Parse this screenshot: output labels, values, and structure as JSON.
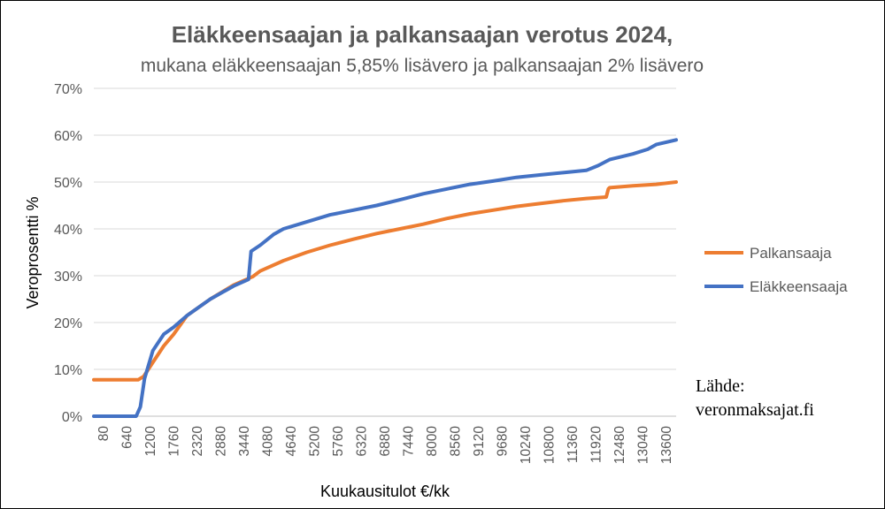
{
  "chart_data": {
    "type": "line",
    "title": "Eläkkeensaajan ja palkansaajan verotus 2024,",
    "subtitle": "mukana eläkkeensaajan 5,85% lisävero ja palkansaajan 2% lisävero",
    "xlabel": "Kuukausitulot €/kk",
    "ylabel": "Veroprosentti %",
    "ylim": [
      0,
      70
    ],
    "y_ticks": [
      "0%",
      "10%",
      "20%",
      "30%",
      "40%",
      "50%",
      "60%",
      "70%"
    ],
    "x_ticks": [
      "80",
      "640",
      "1200",
      "1760",
      "2320",
      "2880",
      "3440",
      "4080",
      "4640",
      "5200",
      "5760",
      "6320",
      "6880",
      "7440",
      "8000",
      "8560",
      "9120",
      "9680",
      "10240",
      "10800",
      "11360",
      "11920",
      "12480",
      "13040",
      "13600"
    ],
    "xlim": [
      80,
      14080
    ],
    "grid": "horizontal",
    "legend_position": "right",
    "series": [
      {
        "name": "Palkansaaja",
        "color": "#ED7D31",
        "x": [
          80,
          1150,
          1280,
          1500,
          1760,
          2000,
          2320,
          2880,
          3440,
          3900,
          4080,
          4640,
          5200,
          5760,
          6320,
          6880,
          7440,
          8000,
          8560,
          9120,
          9680,
          10240,
          10800,
          11360,
          11920,
          12400,
          12450,
          12480,
          13040,
          13600,
          14080
        ],
        "values": [
          7.8,
          7.8,
          8.5,
          11.5,
          15,
          17.5,
          21.5,
          25,
          28,
          29.8,
          31,
          33.2,
          35,
          36.5,
          37.8,
          39,
          40,
          41,
          42.2,
          43.2,
          44,
          44.8,
          45.4,
          46,
          46.5,
          46.8,
          48.5,
          48.8,
          49.2,
          49.5,
          50
        ]
      },
      {
        "name": "Eläkkeensaaja",
        "color": "#4472C4",
        "x": [
          80,
          1100,
          1200,
          1300,
          1500,
          1760,
          2000,
          2320,
          2880,
          3440,
          3800,
          3860,
          4080,
          4400,
          4640,
          5200,
          5760,
          6320,
          6880,
          7440,
          8000,
          8560,
          9120,
          9680,
          10240,
          10800,
          11360,
          11920,
          12200,
          12480,
          13040,
          13400,
          13600,
          14080
        ],
        "values": [
          0,
          0,
          2,
          8,
          14,
          17.5,
          19,
          21.5,
          25,
          27.8,
          29.2,
          35.2,
          36.5,
          38.8,
          40,
          41.5,
          43,
          44,
          45,
          46.2,
          47.5,
          48.5,
          49.5,
          50.2,
          51,
          51.5,
          52,
          52.5,
          53.5,
          54.8,
          56,
          57,
          58,
          59
        ]
      }
    ]
  },
  "source_label": "Lähde:",
  "source_site": "veronmaksajat.fi"
}
